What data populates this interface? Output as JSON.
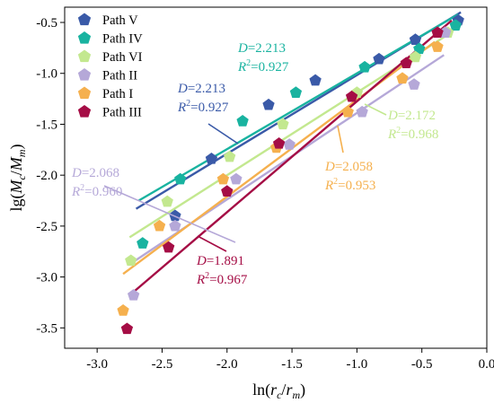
{
  "chart_data": {
    "type": "scatter",
    "xlabel": "ln(r_c/r_m)",
    "ylabel": "lg(M_c/M_m)",
    "xlim": [
      -3.25,
      0.0
    ],
    "ylim": [
      -3.7,
      -0.35
    ],
    "xticks": [
      "-3.0",
      "-2.5",
      "-2.0",
      "-1.5",
      "-1.0",
      "-0.5",
      "0.0"
    ],
    "yticks": [
      "-0.5",
      "-1.0",
      "-1.5",
      "-2.0",
      "-2.5",
      "-3.0",
      "-3.5"
    ],
    "grid": false,
    "legend_position": "top-left",
    "series": [
      {
        "name": "Path V",
        "color": "#3a5aa8",
        "points": [
          [
            -2.4,
            -2.4
          ],
          [
            -2.12,
            -1.84
          ],
          [
            -1.68,
            -1.31
          ],
          [
            -1.32,
            -1.07
          ],
          [
            -0.83,
            -0.86
          ],
          [
            -0.55,
            -0.67
          ],
          [
            -0.22,
            -0.48
          ]
        ],
        "fit": [
          [
            -2.7,
            -2.33
          ],
          [
            -0.2,
            -0.4
          ]
        ],
        "D": "2.213",
        "R2": "0.927"
      },
      {
        "name": "Path IV",
        "color": "#19b3a0",
        "points": [
          [
            -2.65,
            -2.67
          ],
          [
            -2.36,
            -2.04
          ],
          [
            -1.88,
            -1.47
          ],
          [
            -1.47,
            -1.19
          ],
          [
            -0.94,
            -0.94
          ],
          [
            -0.52,
            -0.76
          ],
          [
            -0.24,
            -0.53
          ]
        ],
        "fit": [
          [
            -2.68,
            -2.25
          ],
          [
            -0.22,
            -0.42
          ]
        ],
        "D": "2.213",
        "R2": "0.927"
      },
      {
        "name": "Path VI",
        "color": "#c3e88f",
        "points": [
          [
            -2.74,
            -2.84
          ],
          [
            -2.46,
            -2.26
          ],
          [
            -1.98,
            -1.82
          ],
          [
            -1.57,
            -1.5
          ],
          [
            -1.0,
            -1.19
          ],
          [
            -0.55,
            -0.84
          ],
          [
            -0.3,
            -0.6
          ]
        ],
        "fit": [
          [
            -2.75,
            -2.61
          ],
          [
            -0.3,
            -0.62
          ]
        ],
        "D": "2.172",
        "R2": "0.968"
      },
      {
        "name": "Path II",
        "color": "#b5a8d8",
        "points": [
          [
            -2.72,
            -3.18
          ],
          [
            -2.4,
            -2.5
          ],
          [
            -1.93,
            -2.04
          ],
          [
            -1.52,
            -1.7
          ],
          [
            -0.96,
            -1.38
          ],
          [
            -0.56,
            -1.11
          ],
          [
            -0.32,
            -0.6
          ]
        ],
        "fit": [
          [
            -2.72,
            -2.85
          ],
          [
            -0.33,
            -0.82
          ]
        ],
        "D": "2.068",
        "R2": "0.960"
      },
      {
        "name": "Path I",
        "color": "#f5b04e",
        "points": [
          [
            -2.8,
            -3.33
          ],
          [
            -2.52,
            -2.5
          ],
          [
            -2.03,
            -2.04
          ],
          [
            -1.62,
            -1.73
          ],
          [
            -1.07,
            -1.38
          ],
          [
            -0.65,
            -1.05
          ],
          [
            -0.38,
            -0.74
          ]
        ],
        "fit": [
          [
            -2.8,
            -2.97
          ],
          [
            -0.4,
            -0.69
          ]
        ],
        "D": "2.058",
        "R2": "0.953"
      },
      {
        "name": "Path III",
        "color": "#a50d45",
        "points": [
          [
            -2.77,
            -3.51
          ],
          [
            -2.45,
            -2.71
          ],
          [
            -2.0,
            -2.16
          ],
          [
            -1.6,
            -1.69
          ],
          [
            -1.04,
            -1.23
          ],
          [
            -0.62,
            -0.9
          ],
          [
            -0.38,
            -0.6
          ]
        ],
        "fit": [
          [
            -2.75,
            -3.18
          ],
          [
            -0.27,
            -0.48
          ]
        ],
        "D": "1.891",
        "R2": "0.967"
      }
    ],
    "annotations": [
      {
        "D": "2.213",
        "R2": "0.927",
        "color": "#19b3a0"
      },
      {
        "D": "2.213",
        "R2": "0.927",
        "color": "#3a5aa8"
      },
      {
        "D": "2.172",
        "R2": "0.968",
        "color": "#c3e88f"
      },
      {
        "D": "2.058",
        "R2": "0.953",
        "color": "#f5b04e"
      },
      {
        "D": "2.068",
        "R2": "0.960",
        "color": "#b5a8d8"
      },
      {
        "D": "1.891",
        "R2": "0.967",
        "color": "#a50d45"
      }
    ]
  }
}
